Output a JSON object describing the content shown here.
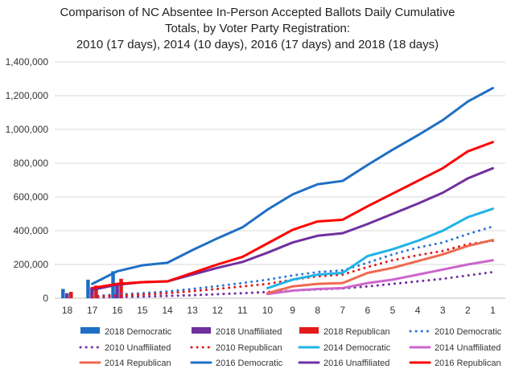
{
  "chart_data": {
    "type": "line",
    "title_lines": [
      "Comparison of NC Absentee In-Person Accepted Ballots Daily Cumulative",
      "Totals, by Voter Party Registration:",
      "2010 (17 days), 2014 (10 days), 2016 (17 days) and 2018 (18 days)"
    ],
    "x_categories": [
      "18",
      "17",
      "16",
      "15",
      "14",
      "13",
      "12",
      "11",
      "10",
      "9",
      "8",
      "7",
      "6",
      "5",
      "4",
      "3",
      "2",
      "1"
    ],
    "y_ticks": [
      "0",
      "200,000",
      "400,000",
      "600,000",
      "800,000",
      "1,000,000",
      "1,200,000",
      "1,400,000"
    ],
    "ylim": [
      0,
      1400000
    ],
    "grid": true,
    "legend_position": "bottom",
    "bar_series": [
      {
        "name": "2018 Democratic",
        "color": "#1f6fc4",
        "values": [
          55000,
          110000,
          160000
        ]
      },
      {
        "name": "2018 Unaffiliated",
        "color": "#7030a0",
        "values": [
          30000,
          65000,
          90000
        ]
      },
      {
        "name": "2018 Republican",
        "color": "#e31a1c",
        "values": [
          38000,
          75000,
          115000
        ]
      }
    ],
    "line_series": [
      {
        "name": "2010 Democratic",
        "color": "#2e75d6",
        "style": "dotted",
        "values": [
          null,
          12000,
          22000,
          30000,
          40000,
          55000,
          72000,
          90000,
          110000,
          135000,
          155000,
          165000,
          210000,
          260000,
          300000,
          330000,
          380000,
          425000
        ]
      },
      {
        "name": "2010 Unaffiliated",
        "color": "#7030a0",
        "style": "dotted",
        "values": [
          null,
          5000,
          8000,
          10000,
          14000,
          18000,
          24000,
          30000,
          37000,
          45000,
          52000,
          58000,
          70000,
          85000,
          100000,
          115000,
          135000,
          155000
        ]
      },
      {
        "name": "2010 Republican",
        "color": "#e31a1c",
        "style": "dotted",
        "values": [
          null,
          10000,
          16000,
          22000,
          30000,
          42000,
          55000,
          70000,
          85000,
          110000,
          130000,
          140000,
          185000,
          225000,
          255000,
          280000,
          320000,
          340000
        ]
      },
      {
        "name": "2014 Democratic",
        "color": "#21b3e8",
        "style": "solid",
        "values": [
          null,
          null,
          null,
          null,
          null,
          null,
          null,
          null,
          60000,
          110000,
          140000,
          150000,
          250000,
          290000,
          340000,
          400000,
          480000,
          530000
        ]
      },
      {
        "name": "2014 Unaffiliated",
        "color": "#cc66cc",
        "style": "solid",
        "values": [
          null,
          null,
          null,
          null,
          null,
          null,
          null,
          null,
          25000,
          45000,
          55000,
          60000,
          90000,
          110000,
          140000,
          170000,
          200000,
          225000
        ]
      },
      {
        "name": "2014 Republican",
        "color": "#ee6a4f",
        "style": "solid",
        "values": [
          null,
          null,
          null,
          null,
          null,
          null,
          null,
          null,
          30000,
          70000,
          85000,
          90000,
          150000,
          180000,
          220000,
          260000,
          310000,
          345000
        ]
      },
      {
        "name": "2016 Democratic",
        "color": "#1f6fc4",
        "style": "solid",
        "values": [
          null,
          85000,
          160000,
          195000,
          210000,
          285000,
          355000,
          420000,
          525000,
          615000,
          675000,
          695000,
          790000,
          880000,
          965000,
          1055000,
          1165000,
          1245000
        ]
      },
      {
        "name": "2016 Unaffiliated",
        "color": "#7030a0",
        "style": "solid",
        "values": [
          null,
          50000,
          80000,
          95000,
          100000,
          140000,
          180000,
          215000,
          270000,
          330000,
          370000,
          385000,
          440000,
          500000,
          560000,
          625000,
          710000,
          770000
        ]
      },
      {
        "name": "2016 Republican",
        "color": "#ff0000",
        "style": "solid",
        "values": [
          null,
          60000,
          85000,
          95000,
          100000,
          150000,
          200000,
          245000,
          325000,
          405000,
          455000,
          465000,
          545000,
          620000,
          695000,
          770000,
          870000,
          925000
        ]
      }
    ],
    "legend_order": [
      "2018 Democratic",
      "2018 Unaffiliated",
      "2018 Republican",
      "2010 Democratic",
      "2010 Unaffiliated",
      "2010 Republican",
      "2014 Democratic",
      "2014 Unaffiliated",
      "2014 Republican",
      "2016 Democratic",
      "2016 Unaffiliated",
      "2016 Republican"
    ]
  }
}
